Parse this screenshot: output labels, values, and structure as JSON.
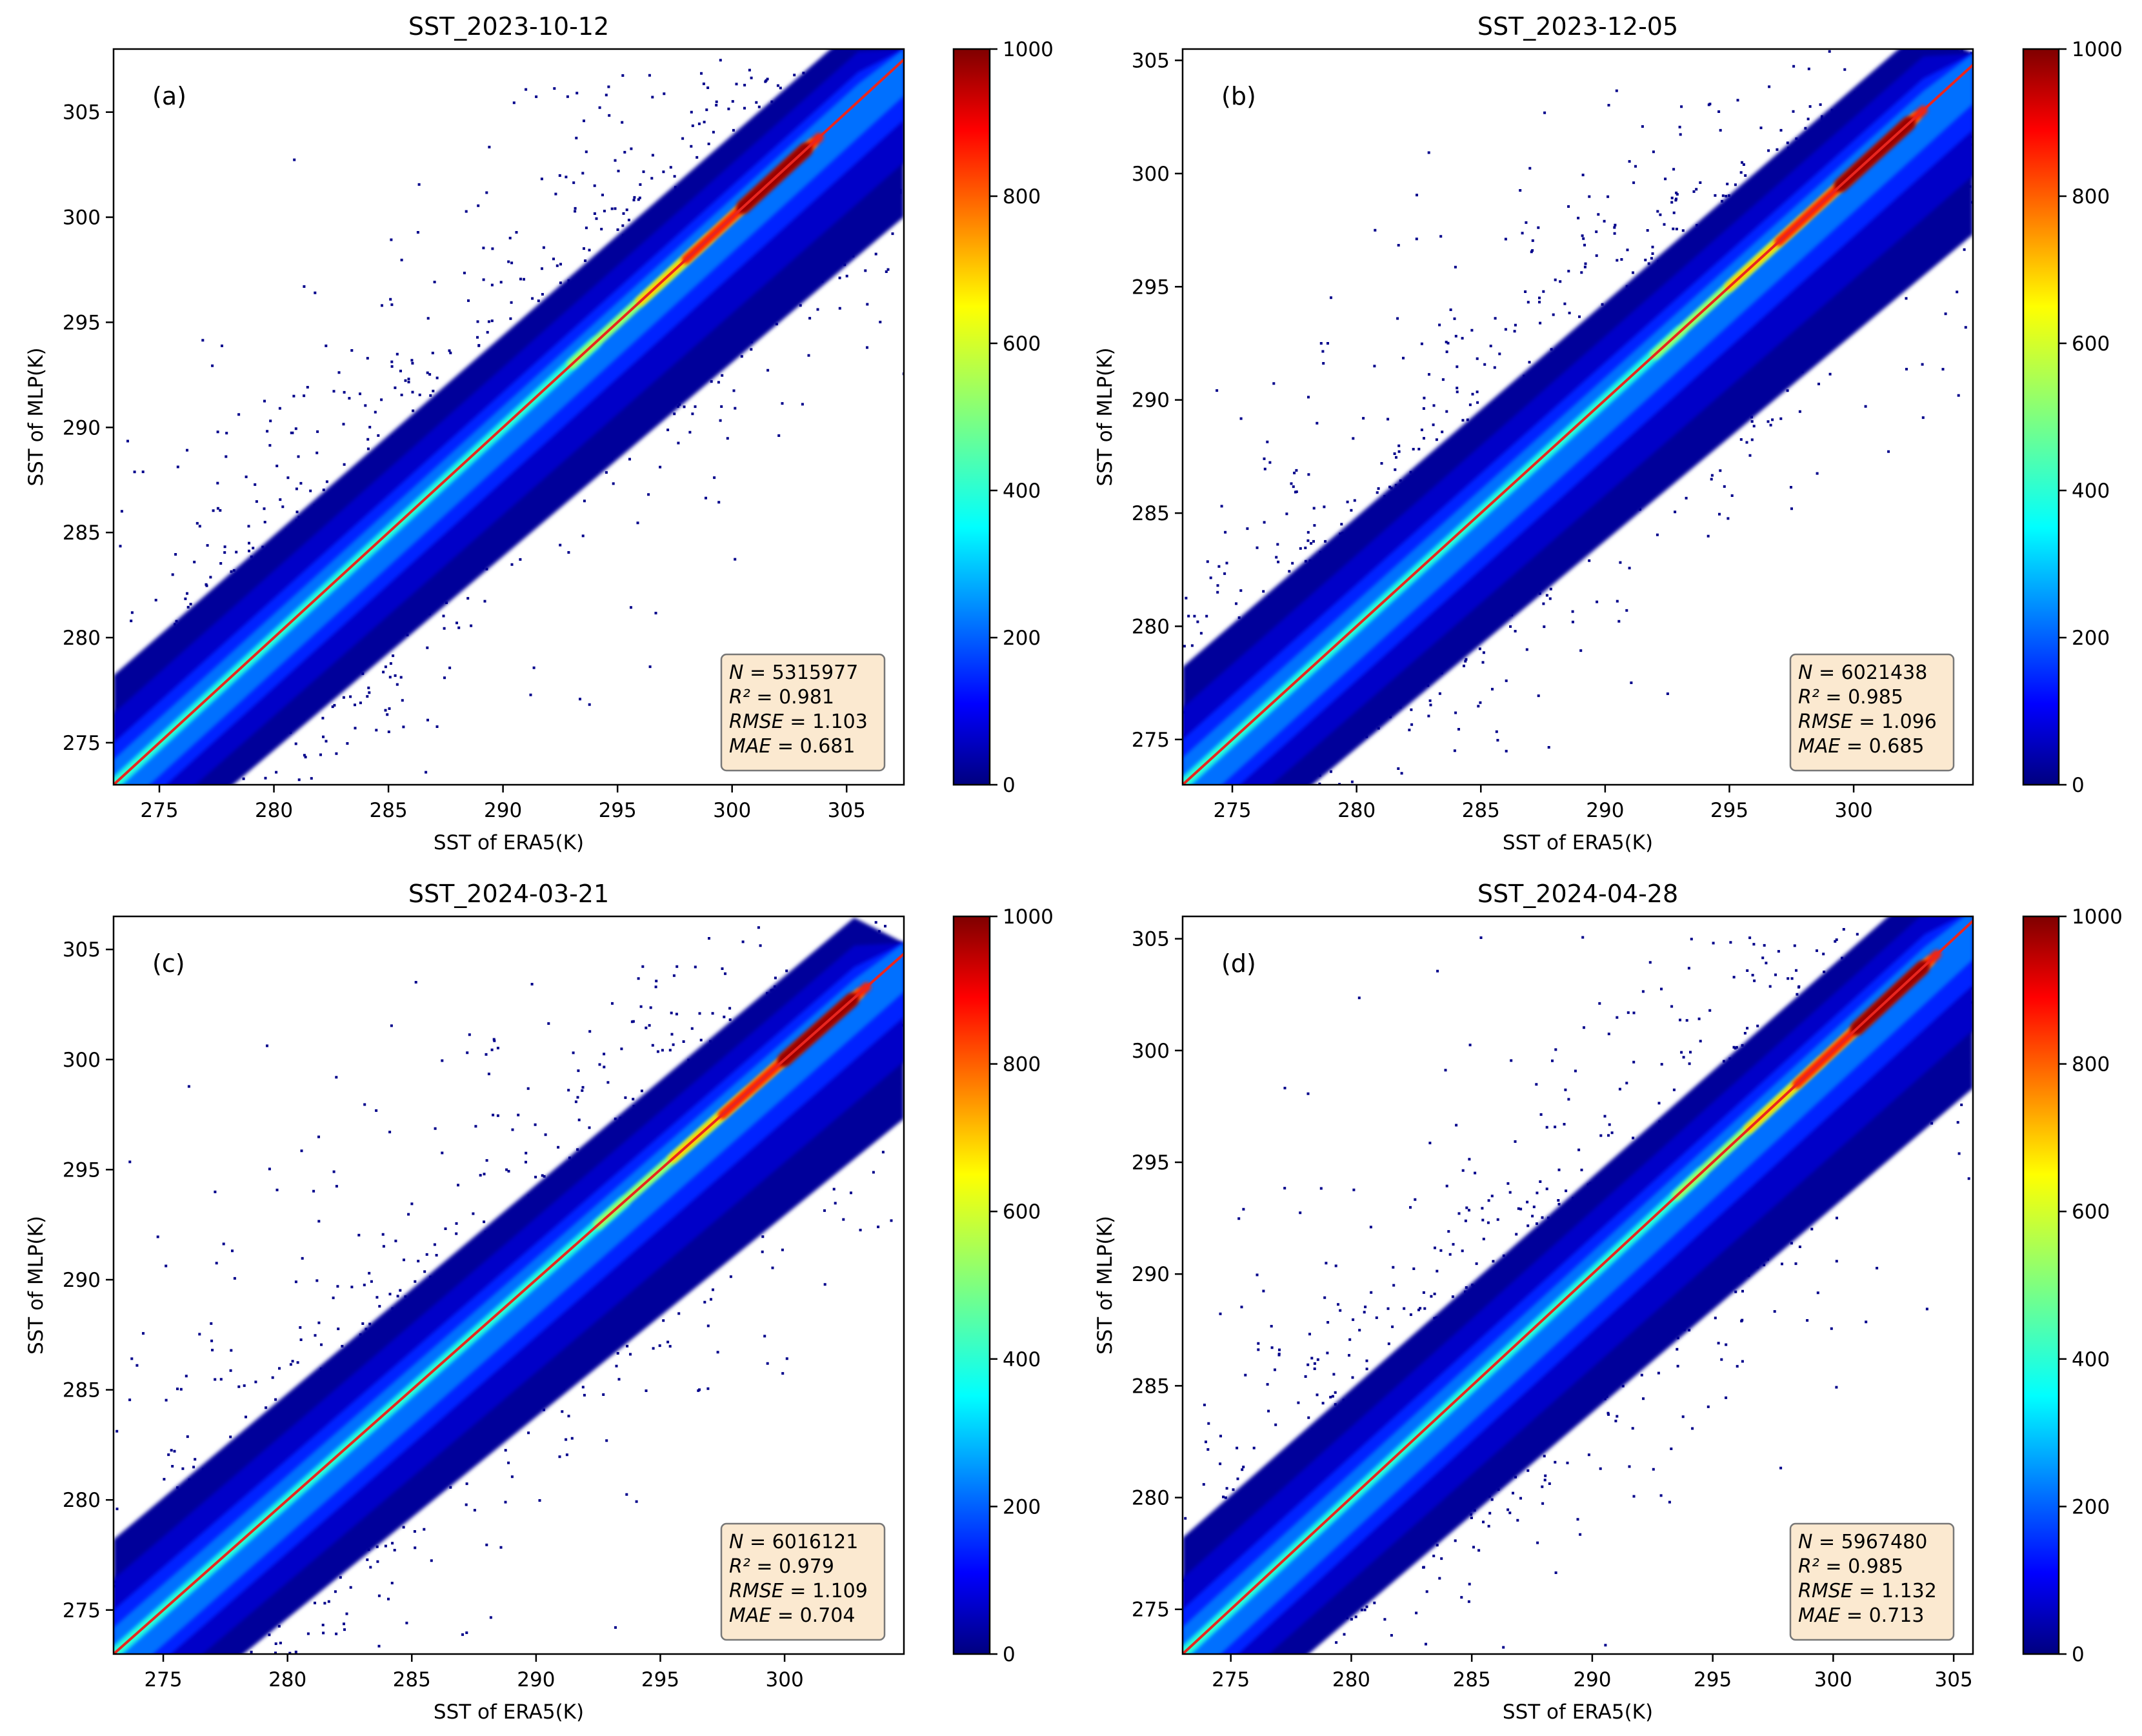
{
  "chart_data": [
    {
      "type": "scatter",
      "panel": "(a)",
      "title": "SST_2023-10-12",
      "xlabel": "SST of ERA5(K)",
      "ylabel": "SST of MLP(K)",
      "xlim": [
        273,
        307.5
      ],
      "ylim": [
        273,
        308
      ],
      "xticks": [
        275,
        280,
        285,
        290,
        295,
        300,
        305
      ],
      "yticks": [
        275,
        280,
        285,
        290,
        295,
        300,
        305
      ],
      "line": {
        "x": [
          273,
          307.5
        ],
        "y": [
          273,
          307.5
        ]
      },
      "density_ridge_peak_x": 302,
      "stats": [
        {
          "label": "N",
          "value": "5315977"
        },
        {
          "label": "R²",
          "value": "0.981"
        },
        {
          "label": "RMSE",
          "value": "1.103"
        },
        {
          "label": "MAE",
          "value": "0.681"
        }
      ],
      "colorbar": {
        "min": 0,
        "max": 1000,
        "ticks": [
          0,
          200,
          400,
          600,
          800,
          1000
        ]
      }
    },
    {
      "type": "scatter",
      "panel": "(b)",
      "title": "SST_2023-12-05",
      "xlabel": "SST of ERA5(K)",
      "ylabel": "SST of MLP(K)",
      "xlim": [
        273,
        304.8
      ],
      "ylim": [
        273,
        305.5
      ],
      "xticks": [
        275,
        280,
        285,
        290,
        295,
        300
      ],
      "yticks": [
        275,
        280,
        285,
        290,
        295,
        300,
        305
      ],
      "line": {
        "x": [
          273,
          304.8
        ],
        "y": [
          273,
          304.8
        ]
      },
      "density_ridge_peak_x": 301,
      "stats": [
        {
          "label": "N",
          "value": "6021438"
        },
        {
          "label": "R²",
          "value": "0.985"
        },
        {
          "label": "RMSE",
          "value": "1.096"
        },
        {
          "label": "MAE",
          "value": "0.685"
        }
      ],
      "colorbar": {
        "min": 0,
        "max": 1000,
        "ticks": [
          0,
          200,
          400,
          600,
          800,
          1000
        ]
      }
    },
    {
      "type": "scatter",
      "panel": "(c)",
      "title": "SST_2024-03-21",
      "xlabel": "SST of ERA5(K)",
      "ylabel": "SST of MLP(K)",
      "xlim": [
        273,
        304.8
      ],
      "ylim": [
        273,
        306.5
      ],
      "xticks": [
        275,
        280,
        285,
        290,
        295,
        300
      ],
      "yticks": [
        275,
        280,
        285,
        290,
        295,
        300,
        305
      ],
      "line": {
        "x": [
          273,
          304.8
        ],
        "y": [
          273,
          304.8
        ]
      },
      "density_ridge_peak_x": 301.5,
      "stats": [
        {
          "label": "N",
          "value": "6016121"
        },
        {
          "label": "R²",
          "value": "0.979"
        },
        {
          "label": "RMSE",
          "value": "1.109"
        },
        {
          "label": "MAE",
          "value": "0.704"
        }
      ],
      "colorbar": {
        "min": 0,
        "max": 1000,
        "ticks": [
          0,
          200,
          400,
          600,
          800,
          1000
        ]
      }
    },
    {
      "type": "scatter",
      "panel": "(d)",
      "title": "SST_2024-04-28",
      "xlabel": "SST of ERA5(K)",
      "ylabel": "SST of MLP(K)",
      "xlim": [
        273,
        305.8
      ],
      "ylim": [
        273,
        306
      ],
      "xticks": [
        275,
        280,
        285,
        290,
        295,
        300,
        305
      ],
      "yticks": [
        275,
        280,
        285,
        290,
        295,
        300,
        305
      ],
      "line": {
        "x": [
          273,
          305.8
        ],
        "y": [
          273,
          305.8
        ]
      },
      "density_ridge_peak_x": 302.5,
      "stats": [
        {
          "label": "N",
          "value": "5967480"
        },
        {
          "label": "R²",
          "value": "0.985"
        },
        {
          "label": "RMSE",
          "value": "1.132"
        },
        {
          "label": "MAE",
          "value": "0.713"
        }
      ],
      "colorbar": {
        "min": 0,
        "max": 1000,
        "ticks": [
          0,
          200,
          400,
          600,
          800,
          1000
        ]
      }
    }
  ]
}
